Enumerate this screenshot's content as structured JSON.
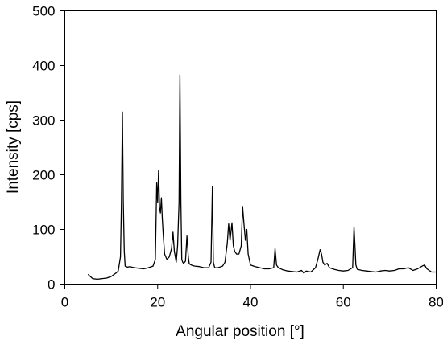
{
  "chart_data": {
    "type": "line",
    "title": "",
    "xlabel": "Angular position [°]",
    "ylabel": "Intensity [cps]",
    "xlim": [
      0,
      80
    ],
    "ylim": [
      0,
      500
    ],
    "xticks": [
      0,
      20,
      40,
      60,
      80
    ],
    "yticks": [
      0,
      100,
      200,
      300,
      400,
      500
    ],
    "grid": false,
    "legend": "none",
    "line_color": "#000000",
    "series": [
      {
        "x": [
          5,
          5.5,
          6,
          7,
          8,
          9,
          10,
          10.5,
          11,
          11.5,
          12,
          12.2,
          12.4,
          12.6,
          12.8,
          13,
          13.5,
          14,
          15,
          16,
          17,
          18,
          19,
          19.5,
          19.8,
          20,
          20.2,
          20.4,
          20.6,
          20.8,
          21,
          21.2,
          21.5,
          22,
          22.5,
          23,
          23.3,
          23.6,
          24,
          24.3,
          24.6,
          24.8,
          25,
          25.2,
          25.4,
          25.6,
          26,
          26.3,
          26.6,
          26.8,
          27,
          27.5,
          28,
          29,
          30,
          31,
          31.5,
          31.8,
          32,
          32.3,
          33,
          34,
          34.5,
          35,
          35.3,
          35.6,
          36,
          36.3,
          36.6,
          37,
          37.5,
          38,
          38.3,
          38.6,
          38.9,
          39.2,
          39.5,
          40,
          41,
          42,
          43,
          44,
          45,
          45.3,
          45.6,
          46,
          47,
          48,
          50,
          51,
          51.5,
          52,
          53,
          54,
          54.5,
          55,
          55.3,
          55.6,
          56,
          56.5,
          57,
          58,
          59,
          60,
          61,
          62,
          62.3,
          62.5,
          62.7,
          63,
          64,
          65,
          66,
          67,
          68,
          69,
          70,
          71,
          72,
          73,
          74,
          75,
          76,
          77,
          77.5,
          78,
          79,
          80
        ],
        "y": [
          18,
          14,
          10,
          9,
          10,
          11,
          14,
          17,
          20,
          24,
          50,
          150,
          315,
          150,
          60,
          33,
          31,
          32,
          30,
          29,
          28,
          30,
          33,
          45,
          185,
          150,
          208,
          140,
          130,
          158,
          120,
          90,
          55,
          45,
          50,
          65,
          95,
          60,
          40,
          70,
          150,
          383,
          150,
          45,
          40,
          38,
          42,
          88,
          50,
          38,
          36,
          34,
          33,
          32,
          30,
          30,
          40,
          178,
          40,
          30,
          30,
          33,
          40,
          75,
          110,
          80,
          112,
          70,
          60,
          55,
          55,
          70,
          142,
          110,
          80,
          100,
          55,
          35,
          32,
          30,
          28,
          28,
          30,
          65,
          35,
          30,
          26,
          24,
          22,
          25,
          20,
          24,
          22,
          30,
          45,
          63,
          55,
          40,
          35,
          38,
          30,
          27,
          25,
          24,
          25,
          30,
          105,
          70,
          35,
          27,
          25,
          24,
          23,
          22,
          24,
          25,
          24,
          25,
          28,
          28,
          30,
          25,
          28,
          33,
          35,
          28,
          22,
          22
        ]
      }
    ]
  }
}
